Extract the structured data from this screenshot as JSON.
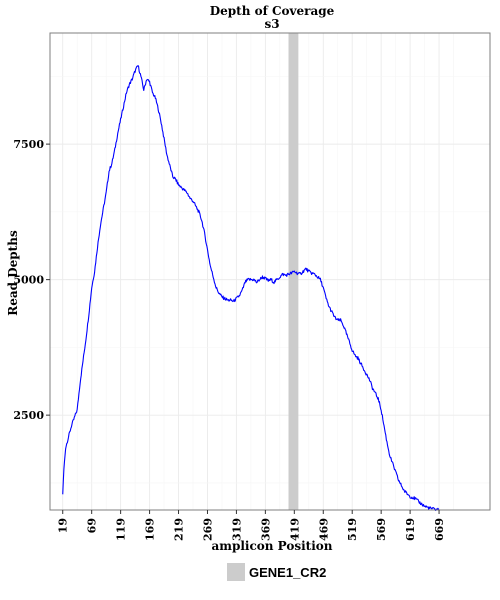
{
  "chart_data": {
    "type": "line",
    "title": "Depth of Coverage",
    "subtitle": "s3",
    "xlabel": "amplicon Position",
    "ylabel": "Read Depths",
    "xlim": [
      -3,
      757
    ],
    "ylim": [
      750,
      9550
    ],
    "x_ticks": [
      19,
      69,
      119,
      169,
      219,
      269,
      319,
      369,
      419,
      469,
      519,
      569,
      619,
      669
    ],
    "y_ticks": [
      2500,
      5000,
      7500
    ],
    "grid": true,
    "legend_position": "bottom",
    "series": [
      {
        "color": "#0000ff",
        "points": [
          [
            19,
            1050
          ],
          [
            21,
            1500
          ],
          [
            24,
            1900
          ],
          [
            29,
            2100
          ],
          [
            34,
            2300
          ],
          [
            39,
            2450
          ],
          [
            44,
            2600
          ],
          [
            49,
            3100
          ],
          [
            54,
            3500
          ],
          [
            59,
            3900
          ],
          [
            64,
            4350
          ],
          [
            69,
            4850
          ],
          [
            74,
            5150
          ],
          [
            79,
            5600
          ],
          [
            84,
            6000
          ],
          [
            89,
            6300
          ],
          [
            94,
            6600
          ],
          [
            99,
            7000
          ],
          [
            104,
            7150
          ],
          [
            109,
            7400
          ],
          [
            114,
            7700
          ],
          [
            119,
            7950
          ],
          [
            124,
            8200
          ],
          [
            129,
            8450
          ],
          [
            134,
            8600
          ],
          [
            139,
            8700
          ],
          [
            144,
            8850
          ],
          [
            149,
            8950
          ],
          [
            154,
            8750
          ],
          [
            159,
            8500
          ],
          [
            164,
            8700
          ],
          [
            169,
            8650
          ],
          [
            174,
            8450
          ],
          [
            179,
            8350
          ],
          [
            184,
            8150
          ],
          [
            189,
            7900
          ],
          [
            194,
            7600
          ],
          [
            199,
            7300
          ],
          [
            204,
            7100
          ],
          [
            209,
            6900
          ],
          [
            214,
            6850
          ],
          [
            219,
            6750
          ],
          [
            224,
            6700
          ],
          [
            229,
            6650
          ],
          [
            234,
            6600
          ],
          [
            239,
            6500
          ],
          [
            244,
            6450
          ],
          [
            249,
            6350
          ],
          [
            254,
            6250
          ],
          [
            259,
            6100
          ],
          [
            264,
            5850
          ],
          [
            269,
            5550
          ],
          [
            274,
            5250
          ],
          [
            279,
            5050
          ],
          [
            284,
            4850
          ],
          [
            289,
            4750
          ],
          [
            294,
            4680
          ],
          [
            299,
            4650
          ],
          [
            304,
            4620
          ],
          [
            309,
            4620
          ],
          [
            314,
            4600
          ],
          [
            319,
            4650
          ],
          [
            324,
            4700
          ],
          [
            329,
            4800
          ],
          [
            334,
            4950
          ],
          [
            339,
            5000
          ],
          [
            344,
            5000
          ],
          [
            349,
            5000
          ],
          [
            354,
            4950
          ],
          [
            359,
            5000
          ],
          [
            364,
            5050
          ],
          [
            369,
            5020
          ],
          [
            374,
            4980
          ],
          [
            379,
            5000
          ],
          [
            384,
            4950
          ],
          [
            389,
            5000
          ],
          [
            394,
            5050
          ],
          [
            399,
            5100
          ],
          [
            404,
            5080
          ],
          [
            409,
            5100
          ],
          [
            414,
            5120
          ],
          [
            419,
            5150
          ],
          [
            424,
            5120
          ],
          [
            429,
            5100
          ],
          [
            434,
            5150
          ],
          [
            439,
            5200
          ],
          [
            444,
            5150
          ],
          [
            449,
            5120
          ],
          [
            454,
            5100
          ],
          [
            459,
            5050
          ],
          [
            464,
            5000
          ],
          [
            469,
            4850
          ],
          [
            474,
            4650
          ],
          [
            479,
            4500
          ],
          [
            484,
            4400
          ],
          [
            489,
            4300
          ],
          [
            494,
            4250
          ],
          [
            499,
            4250
          ],
          [
            504,
            4150
          ],
          [
            509,
            4000
          ],
          [
            514,
            3850
          ],
          [
            519,
            3700
          ],
          [
            524,
            3600
          ],
          [
            529,
            3550
          ],
          [
            534,
            3450
          ],
          [
            539,
            3350
          ],
          [
            544,
            3250
          ],
          [
            549,
            3150
          ],
          [
            554,
            3000
          ],
          [
            559,
            2900
          ],
          [
            564,
            2800
          ],
          [
            569,
            2600
          ],
          [
            574,
            2300
          ],
          [
            579,
            2000
          ],
          [
            584,
            1750
          ],
          [
            589,
            1600
          ],
          [
            594,
            1450
          ],
          [
            599,
            1300
          ],
          [
            604,
            1200
          ],
          [
            609,
            1100
          ],
          [
            614,
            1050
          ],
          [
            619,
            1000
          ],
          [
            624,
            980
          ],
          [
            629,
            950
          ],
          [
            634,
            900
          ],
          [
            639,
            860
          ],
          [
            644,
            820
          ],
          [
            649,
            800
          ],
          [
            654,
            780
          ],
          [
            659,
            770
          ],
          [
            664,
            760
          ],
          [
            669,
            760
          ]
        ]
      }
    ],
    "shaded_regions": [
      {
        "label": "GENE1_CR2",
        "x_start": 409,
        "x_end": 426,
        "color": "#cccccc"
      }
    ]
  }
}
